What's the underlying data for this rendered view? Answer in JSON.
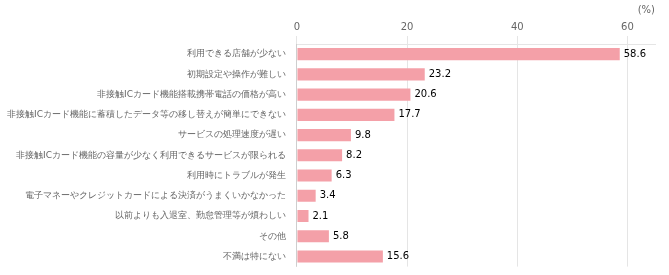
{
  "chart_data": {
    "type": "bar",
    "orientation": "horizontal",
    "categories": [
      "不満は特にない",
      "その他",
      "以前よりも入退室、勤怠管理等が煩わしい",
      "電子マネーやクレジットカードによる決済がうまくいかなかった",
      "利用時にトラブルが発生",
      "非接触ICカード機能の容量が少なく利用できるサービスが限られる",
      "サービスの処理速度が遅い",
      "非接触ICカード機能に蓄積したデータ等の移し替えが簡単にできない",
      "非接触ICカード機能搭載携帯電話の価格が高い",
      "初期設定や操作が難しい",
      "利用できる店舗が少ない"
    ],
    "values": [
      15.6,
      5.8,
      2.1,
      3.4,
      6.3,
      8.2,
      9.8,
      17.7,
      20.6,
      23.2,
      58.6
    ],
    "color": "#f4a0a8",
    "xlabel": "(%)",
    "xlim": [
      0,
      65
    ],
    "xticks": [
      0,
      20,
      40,
      60
    ],
    "grid": true,
    "data_labels": true
  }
}
